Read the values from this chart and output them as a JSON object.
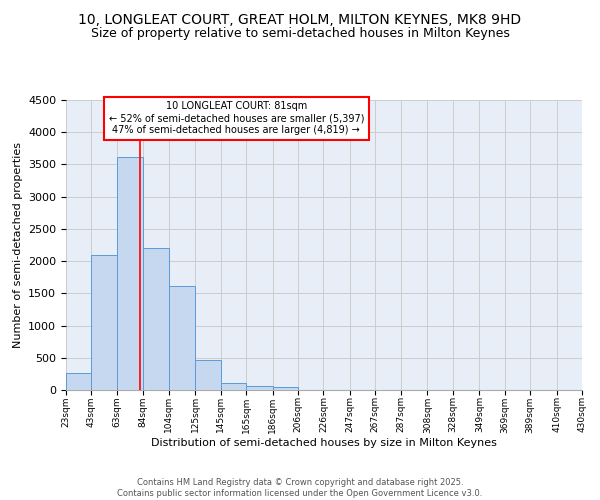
{
  "title1": "10, LONGLEAT COURT, GREAT HOLM, MILTON KEYNES, MK8 9HD",
  "title2": "Size of property relative to semi-detached houses in Milton Keynes",
  "xlabel": "Distribution of semi-detached houses by size in Milton Keynes",
  "ylabel": "Number of semi-detached properties",
  "footer1": "Contains HM Land Registry data © Crown copyright and database right 2025.",
  "footer2": "Contains public sector information licensed under the Open Government Licence v3.0.",
  "annotation_title": "10 LONGLEAT COURT: 81sqm",
  "annotation_line1": "← 52% of semi-detached houses are smaller (5,397)",
  "annotation_line2": "47% of semi-detached houses are larger (4,819) →",
  "property_size": 81,
  "vline_x": 81,
  "bar_edges": [
    23,
    43,
    63,
    84,
    104,
    125,
    145,
    165,
    186,
    206,
    226,
    247,
    267,
    287,
    308,
    328,
    349,
    369,
    389,
    410,
    430
  ],
  "bar_heights": [
    260,
    2100,
    3620,
    2210,
    1610,
    460,
    110,
    60,
    40,
    0,
    0,
    0,
    0,
    0,
    0,
    0,
    0,
    0,
    0,
    0
  ],
  "bar_color": "#c5d8f0",
  "bar_edge_color": "#5b9bd5",
  "vline_color": "red",
  "annotation_box_color": "red",
  "annotation_bg_color": "white",
  "ylim": [
    0,
    4500
  ],
  "yticks": [
    0,
    500,
    1000,
    1500,
    2000,
    2500,
    3000,
    3500,
    4000,
    4500
  ],
  "grid_color": "#cccccc",
  "bg_color": "#e8eef8",
  "title_fontsize": 10,
  "subtitle_fontsize": 9,
  "annotation_fontsize": 7,
  "ylabel_fontsize": 8,
  "xlabel_fontsize": 8,
  "footer_fontsize": 6,
  "tick_fontsize": 6.5
}
